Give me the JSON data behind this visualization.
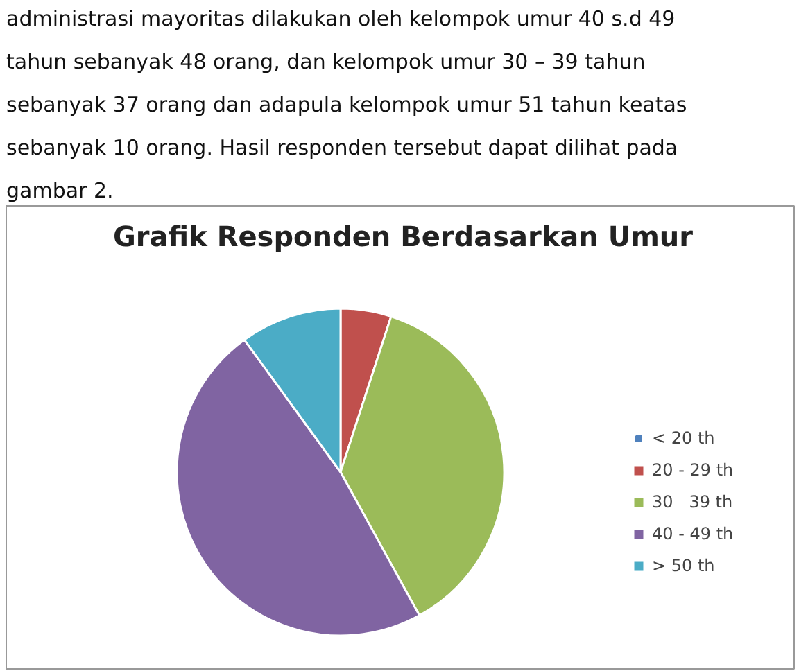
{
  "chart_data": {
    "type": "pie",
    "title": "Grafik Responden Berdasarkan Umur",
    "annotations": [
      "administrasi mayoritas dilakukan oleh kelompok umur 40 s.d 49",
      "tahun sebanyak 48 orang, dan kelompok umur 30 – 39 tahun",
      "sebanyak  37 orang dan adapula kelompok umur 51 tahun keatas",
      "sebanyak 10 orang. Hasil responden tersebut dapat dilihat pada",
      "gambar 2."
    ],
    "categories": [
      "< 20 th",
      "20 - 29 th",
      "30   39 th",
      "40 - 49 th",
      "> 50 th"
    ],
    "values": [
      0,
      5,
      37,
      48,
      10
    ],
    "colors": [
      "#4f81bd",
      "#c0504d",
      "#9bbb59",
      "#8064a2",
      "#4bacc6"
    ],
    "legend": "right"
  }
}
